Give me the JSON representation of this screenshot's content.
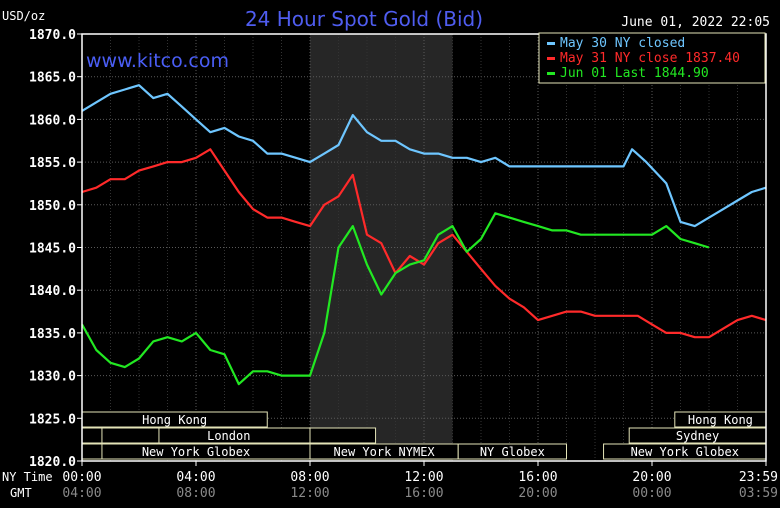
{
  "chart_data": {
    "type": "line",
    "title": "24 Hour Spot Gold (Bid)",
    "unit_label": "USD/oz",
    "watermark": "www.kitco.com",
    "timestamp": "June 01, 2022 22:05",
    "ylim": [
      1820,
      1870
    ],
    "y_ticks": [
      "1870.0",
      "1865.0",
      "1860.0",
      "1855.0",
      "1850.0",
      "1845.0",
      "1840.0",
      "1835.0",
      "1830.0",
      "1825.0",
      "1820.0"
    ],
    "xlim": [
      0,
      24
    ],
    "x_axis_label_ny": "NY Time",
    "x_axis_label_gmt": "GMT",
    "x_ticks_ny": [
      "00:00",
      "04:00",
      "08:00",
      "12:00",
      "16:00",
      "20:00",
      "23:59"
    ],
    "x_ticks_gmt": [
      "04:00",
      "08:00",
      "12:00",
      "16:00",
      "20:00",
      "00:00",
      "03:59"
    ],
    "grid": true,
    "shaded_session": [
      8,
      13
    ],
    "legend_position": "top-right",
    "legend": [
      {
        "text": "May 30 NY closed",
        "color": "#6ec6ff"
      },
      {
        "text": "May 31 NY close 1837.40",
        "color": "#ff2a2a"
      },
      {
        "text": "Jun 01 Last 1844.90",
        "color": "#22e822"
      }
    ],
    "series": [
      {
        "name": "May 30",
        "color": "#6ec6ff",
        "x": [
          0,
          0.5,
          1,
          1.5,
          2,
          2.5,
          3,
          3.5,
          4,
          4.5,
          5,
          5.5,
          6,
          6.5,
          7,
          7.5,
          8,
          8.5,
          9,
          9.5,
          10,
          10.5,
          11,
          11.5,
          12,
          12.5,
          13,
          13.5,
          14,
          14.5,
          15,
          16,
          17,
          18,
          19,
          19.3,
          19.8,
          20.5,
          21,
          21.5,
          22,
          22.5,
          23,
          23.5,
          24
        ],
        "values": [
          1861,
          1862,
          1863,
          1863.5,
          1864,
          1862.5,
          1863,
          1861.5,
          1860,
          1858.5,
          1859,
          1858,
          1857.5,
          1856,
          1856,
          1855.5,
          1855,
          1856,
          1857,
          1860.5,
          1858.5,
          1857.5,
          1857.5,
          1856.5,
          1856,
          1856,
          1855.5,
          1855.5,
          1855,
          1855.5,
          1854.5,
          1854.5,
          1854.5,
          1854.5,
          1854.5,
          1856.5,
          1855,
          1852.5,
          1848,
          1847.5,
          1848.5,
          1849.5,
          1850.5,
          1851.5,
          1852
        ]
      },
      {
        "name": "May 31",
        "color": "#ff2a2a",
        "x": [
          0,
          0.5,
          1,
          1.5,
          2,
          2.5,
          3,
          3.5,
          4,
          4.5,
          5,
          5.5,
          6,
          6.5,
          7,
          7.5,
          8,
          8.5,
          9,
          9.5,
          10,
          10.5,
          11,
          11.5,
          12,
          12.5,
          13,
          13.5,
          14,
          14.5,
          15,
          15.5,
          16,
          16.5,
          17,
          17.5,
          18,
          18.5,
          19,
          19.5,
          20,
          20.5,
          21,
          21.5,
          22,
          22.5,
          23,
          23.5,
          24
        ],
        "values": [
          1851.5,
          1852,
          1853,
          1853,
          1854,
          1854.5,
          1855,
          1855,
          1855.5,
          1856.5,
          1854,
          1851.5,
          1849.5,
          1848.5,
          1848.5,
          1848,
          1847.5,
          1850,
          1851,
          1853.5,
          1846.5,
          1845.5,
          1842,
          1844,
          1843,
          1845.5,
          1846.5,
          1844.5,
          1842.5,
          1840.5,
          1839,
          1838,
          1836.5,
          1837,
          1837.5,
          1837.5,
          1837,
          1837,
          1837,
          1837,
          1836,
          1835,
          1835,
          1834.5,
          1834.5,
          1835.5,
          1836.5,
          1837,
          1836.5
        ]
      },
      {
        "name": "Jun 01",
        "color": "#22e822",
        "x": [
          0,
          0.5,
          1,
          1.5,
          2,
          2.5,
          3,
          3.5,
          4,
          4.5,
          5,
          5.5,
          6,
          6.5,
          7,
          7.5,
          8,
          8.5,
          9,
          9.5,
          10,
          10.5,
          11,
          11.5,
          12,
          12.5,
          13,
          13.5,
          14,
          14.5,
          15,
          15.5,
          16,
          16.5,
          17,
          17.5,
          18,
          18.5,
          19,
          19.5,
          20,
          20.5,
          21,
          21.5,
          22
        ],
        "values": [
          1836,
          1833,
          1831.5,
          1831,
          1832,
          1834,
          1834.5,
          1834,
          1835,
          1833,
          1832.5,
          1829,
          1830.5,
          1830.5,
          1830,
          1830,
          1830,
          1835,
          1845,
          1847.5,
          1843,
          1839.5,
          1842,
          1843,
          1843.5,
          1846.5,
          1847.5,
          1844.5,
          1846,
          1849,
          1848.5,
          1848,
          1847.5,
          1847,
          1847,
          1846.5,
          1846.5,
          1846.5,
          1846.5,
          1846.5,
          1846.5,
          1847.5,
          1846,
          1845.5,
          1845
        ]
      }
    ],
    "sessions": [
      {
        "label": "Hong Kong",
        "start": 0,
        "end": 6.5,
        "row": 1
      },
      {
        "label": "London",
        "start": 0,
        "end": 10.3,
        "row": 2
      },
      {
        "label": "New York Globex",
        "start": 0,
        "end": 8,
        "row": 3
      },
      {
        "label": "New York NYMEX",
        "start": 8,
        "end": 13.2,
        "row": 3
      },
      {
        "label": "NY Globex",
        "start": 13.2,
        "end": 17,
        "row": 3
      },
      {
        "label": "Hong Kong",
        "start": 20.8,
        "end": 24,
        "row": 1
      },
      {
        "label": "Sydney",
        "start": 19.2,
        "end": 24,
        "row": 2
      },
      {
        "label": "New York Globex",
        "start": 18.3,
        "end": 24,
        "row": 3
      }
    ]
  }
}
